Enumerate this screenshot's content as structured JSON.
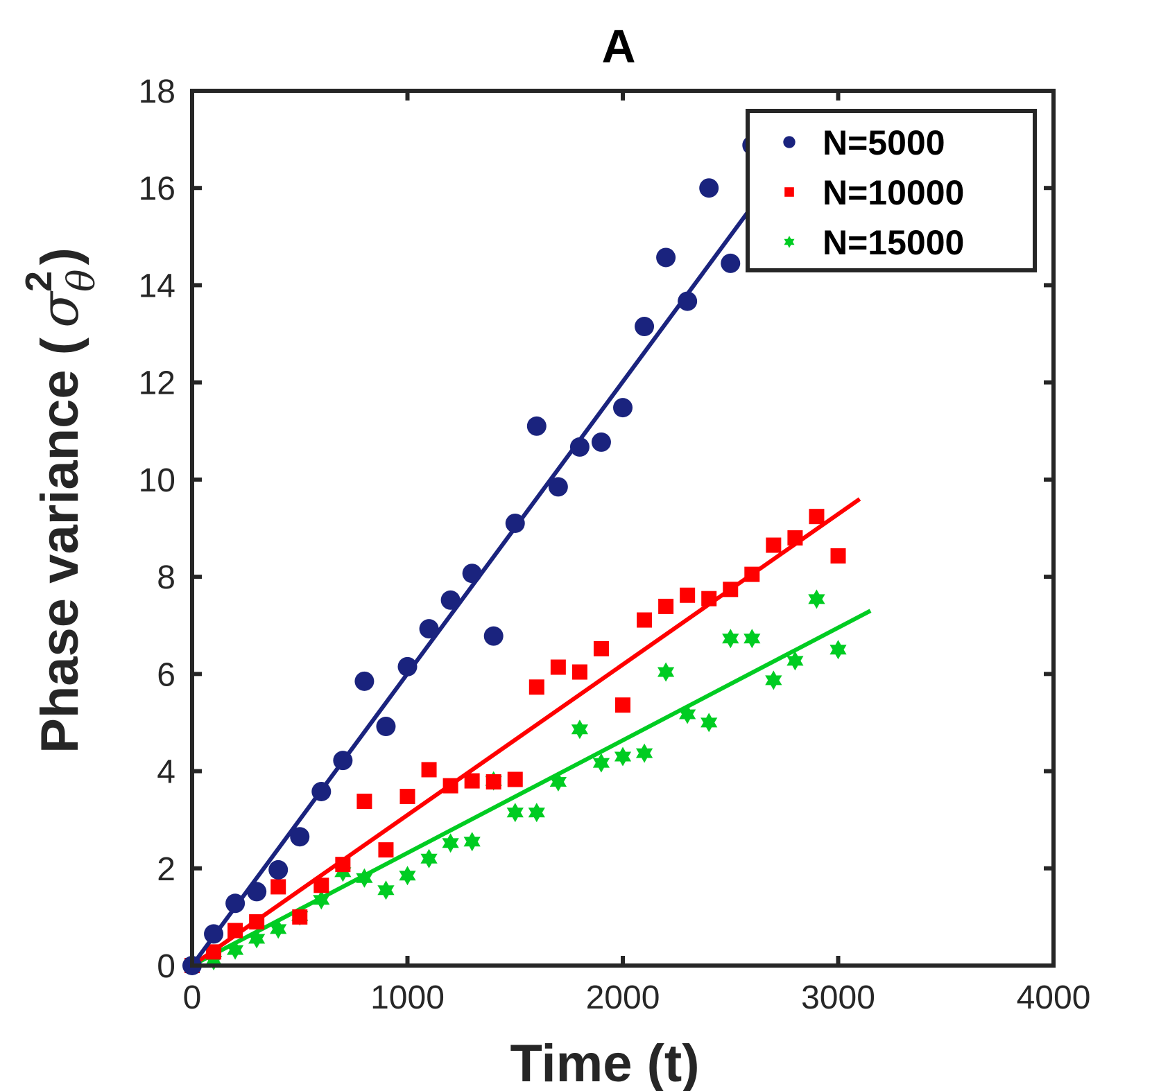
{
  "chart_data": {
    "type": "scatter",
    "title": "A",
    "xlabel": "Time (t)",
    "ylabel": "Phase variance (",
    "ylabel_symbol": "σ",
    "ylabel_superscript": "2",
    "ylabel_subscript": "θ",
    "ylabel_close": ")",
    "xlim": [
      0,
      4000
    ],
    "ylim": [
      0,
      18
    ],
    "xticks": [
      0,
      1000,
      2000,
      3000,
      4000
    ],
    "yticks": [
      0,
      2,
      4,
      6,
      8,
      10,
      12,
      14,
      16,
      18
    ],
    "xtick_labels": [
      "0",
      "1000",
      "2000",
      "3000",
      "4000"
    ],
    "ytick_labels": [
      "0",
      "2",
      "4",
      "6",
      "8",
      "10",
      "12",
      "14",
      "16",
      "18"
    ],
    "grid": false,
    "legend_position": "top-right",
    "series": [
      {
        "name": "N=5000",
        "color": "#1a237e",
        "marker": "circle",
        "x": [
          0,
          100,
          200,
          300,
          400,
          500,
          600,
          700,
          800,
          900,
          1000,
          1100,
          1200,
          1300,
          1400,
          1500,
          1600,
          1700,
          1800,
          1900,
          2000,
          2100,
          2200,
          2300,
          2400,
          2500,
          2600
        ],
        "y": [
          0,
          0.65,
          1.28,
          1.52,
          1.97,
          2.65,
          3.58,
          4.22,
          5.85,
          4.92,
          6.15,
          6.93,
          7.52,
          8.07,
          6.78,
          9.1,
          11.1,
          9.85,
          10.67,
          10.77,
          11.48,
          13.15,
          14.57,
          13.67,
          16.0,
          14.45,
          16.88
        ],
        "fit_x": [
          0,
          2580
        ],
        "fit_y": [
          0,
          15.5
        ]
      },
      {
        "name": "N=10000",
        "color": "#ff0000",
        "marker": "square",
        "x": [
          0,
          100,
          200,
          300,
          400,
          500,
          600,
          700,
          800,
          900,
          1000,
          1100,
          1200,
          1300,
          1400,
          1500,
          1600,
          1700,
          1800,
          1900,
          2000,
          2100,
          2200,
          2300,
          2400,
          2500,
          2600,
          2700,
          2800,
          2900,
          3000
        ],
        "y": [
          0,
          0.28,
          0.72,
          0.9,
          1.62,
          1.0,
          1.65,
          2.08,
          3.38,
          2.38,
          3.48,
          4.03,
          3.7,
          3.8,
          3.78,
          3.83,
          5.73,
          6.14,
          6.04,
          6.52,
          5.36,
          7.11,
          7.39,
          7.62,
          7.55,
          7.74,
          8.05,
          8.65,
          8.8,
          9.24,
          8.43
        ],
        "fit_x": [
          0,
          3100
        ],
        "fit_y": [
          0,
          9.6
        ]
      },
      {
        "name": "N=15000",
        "color": "#00cc22",
        "marker": "star",
        "x": [
          0,
          100,
          200,
          300,
          400,
          500,
          600,
          700,
          800,
          900,
          1000,
          1100,
          1200,
          1300,
          1400,
          1500,
          1600,
          1700,
          1800,
          1900,
          2000,
          2100,
          2200,
          2300,
          2400,
          2500,
          2600,
          2700,
          2800,
          2900,
          3000
        ],
        "y": [
          0,
          0.1,
          0.32,
          0.55,
          0.75,
          1.02,
          1.35,
          1.92,
          1.8,
          1.55,
          1.85,
          2.2,
          2.52,
          2.55,
          3.8,
          3.15,
          3.15,
          3.78,
          4.86,
          4.17,
          4.3,
          4.37,
          6.04,
          5.17,
          5.0,
          6.73,
          6.73,
          5.87,
          6.27,
          7.54,
          6.5
        ],
        "fit_x": [
          0,
          3150
        ],
        "fit_y": [
          0,
          7.3
        ]
      }
    ]
  }
}
